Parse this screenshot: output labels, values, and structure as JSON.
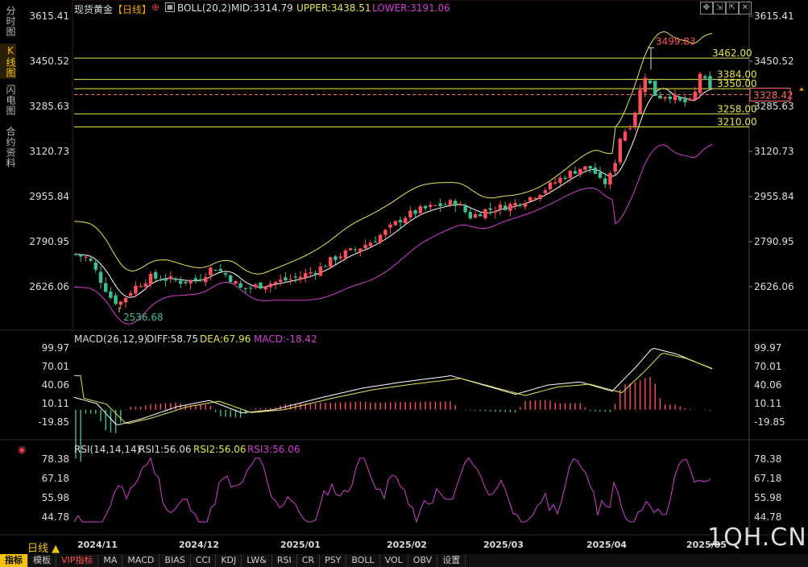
{
  "side_tabs": [
    {
      "label": "分时图",
      "active": false
    },
    {
      "label": "K线图",
      "active": true
    },
    {
      "label": "闪电图",
      "active": false
    },
    {
      "label": "合约资料",
      "active": false
    }
  ],
  "header": {
    "symbol": "现货黄金",
    "period": "【日线】",
    "boll": "BOLL(20,2)",
    "mid": "MID:3314.79",
    "upper": "UPPER:3438.51",
    "lower": "LOWER:3191.06"
  },
  "macd_header": {
    "name": "MACD(26,12,9)",
    "diff": "DIFF:58.75",
    "dea": "DEA:67.96",
    "macd": "MACD:-18.42"
  },
  "rsi_header": {
    "name": "RSI(14,14,14)",
    "rsi1": "RSI1:56.06",
    "rsi2": "RSI2:56.06",
    "rsi3": "RSI3:56.06"
  },
  "price_axis": [
    "3615.41",
    "3450.52",
    "3285.63",
    "3120.73",
    "2955.84",
    "2790.95",
    "2626.06"
  ],
  "macd_axis": [
    "99.97",
    "70.01",
    "40.06",
    "10.11",
    "-19.85"
  ],
  "rsi_axis": [
    "78.38",
    "67.18",
    "55.98",
    "44.78"
  ],
  "current_price": "3328.42",
  "high_label": "3499.83",
  "low_label": "2536.68",
  "level_lines": [
    "3462.00",
    "3384.00",
    "3350.00",
    "3258.00",
    "3210.00"
  ],
  "x_axis": [
    "2024/11",
    "2024/12",
    "2025/01",
    "2025/02",
    "2025/03",
    "2025/04",
    "2025/05"
  ],
  "period_label": "日线 ▲",
  "bottom_tabs": [
    "指标",
    "模板",
    "VIP指标",
    "MA",
    "MACD",
    "BIAS",
    "CCI",
    "KDJ",
    "LW&",
    "RSI",
    "CR",
    "PSY",
    "BOLL",
    "VOL",
    "OBV",
    "设置"
  ],
  "watermark": "1QH.CN",
  "colors": {
    "up": "#ff4d5a",
    "down": "#3fbf8f",
    "mid": "#ffffff",
    "upper": "#e6e64c",
    "lower": "#d63bd6",
    "level": "#e6e64c"
  },
  "chart_data": {
    "type": "candlestick",
    "title": "现货黄金【日线】",
    "price_range": [
      2536.68,
      3615.41
    ],
    "high": 3499.83,
    "low": 2536.68,
    "levels": [
      3462.0,
      3384.0,
      3350.0,
      3258.0,
      3210.0
    ],
    "current": 3328.42,
    "x_labels": [
      "2024/11",
      "2024/12",
      "2025/01",
      "2025/02",
      "2025/03",
      "2025/04",
      "2025/05"
    ],
    "indicators": {
      "boll": {
        "mid": 3314.79,
        "upper": 3438.51,
        "lower": 3191.06
      },
      "macd": {
        "diff": 58.75,
        "dea": 67.96,
        "macd": -18.42,
        "range": [
          -19.85,
          99.97
        ]
      },
      "rsi": {
        "rsi1": 56.06,
        "rsi2": 56.06,
        "rsi3": 56.06,
        "range": [
          44.78,
          78.38
        ]
      }
    }
  }
}
